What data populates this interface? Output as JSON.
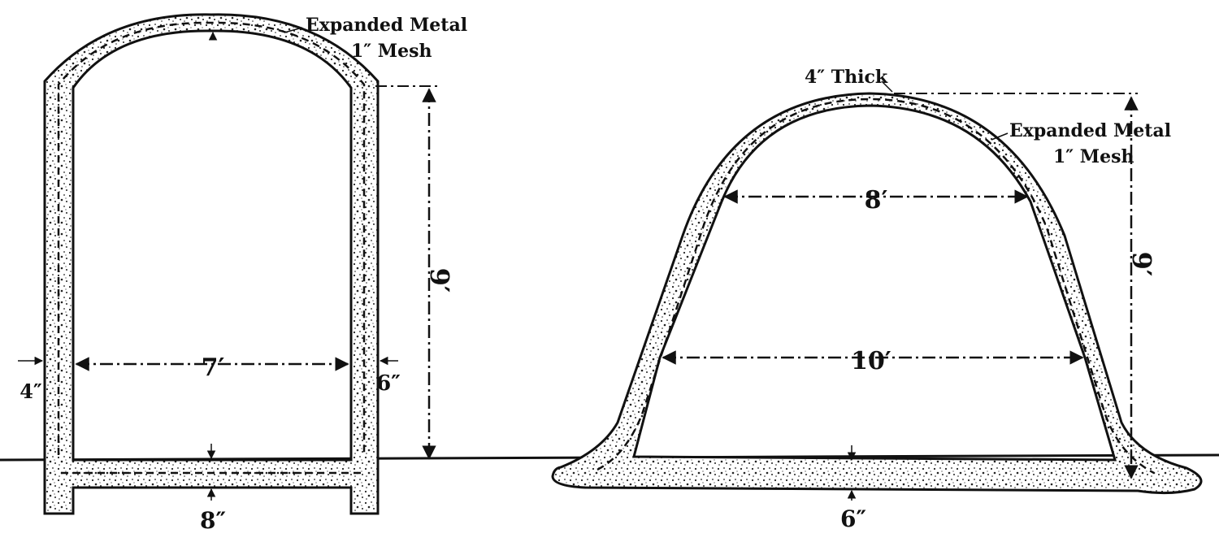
{
  "left_section": {
    "mesh_label_line1": "Expanded Metal",
    "mesh_label_line2": "1″ Mesh",
    "height_dim": "9′",
    "width_dim": "7′",
    "wall_left_thickness": "4″",
    "wall_right_thickness": "6″",
    "floor_thickness": "8″"
  },
  "right_section": {
    "crown_thickness_label": "4″ Thick",
    "mesh_label_line1": "Expanded Metal",
    "mesh_label_line2": "1″ Mesh",
    "upper_width_dim": "8′",
    "lower_width_dim": "10′",
    "height_dim": "9′",
    "floor_thickness": "6″"
  }
}
